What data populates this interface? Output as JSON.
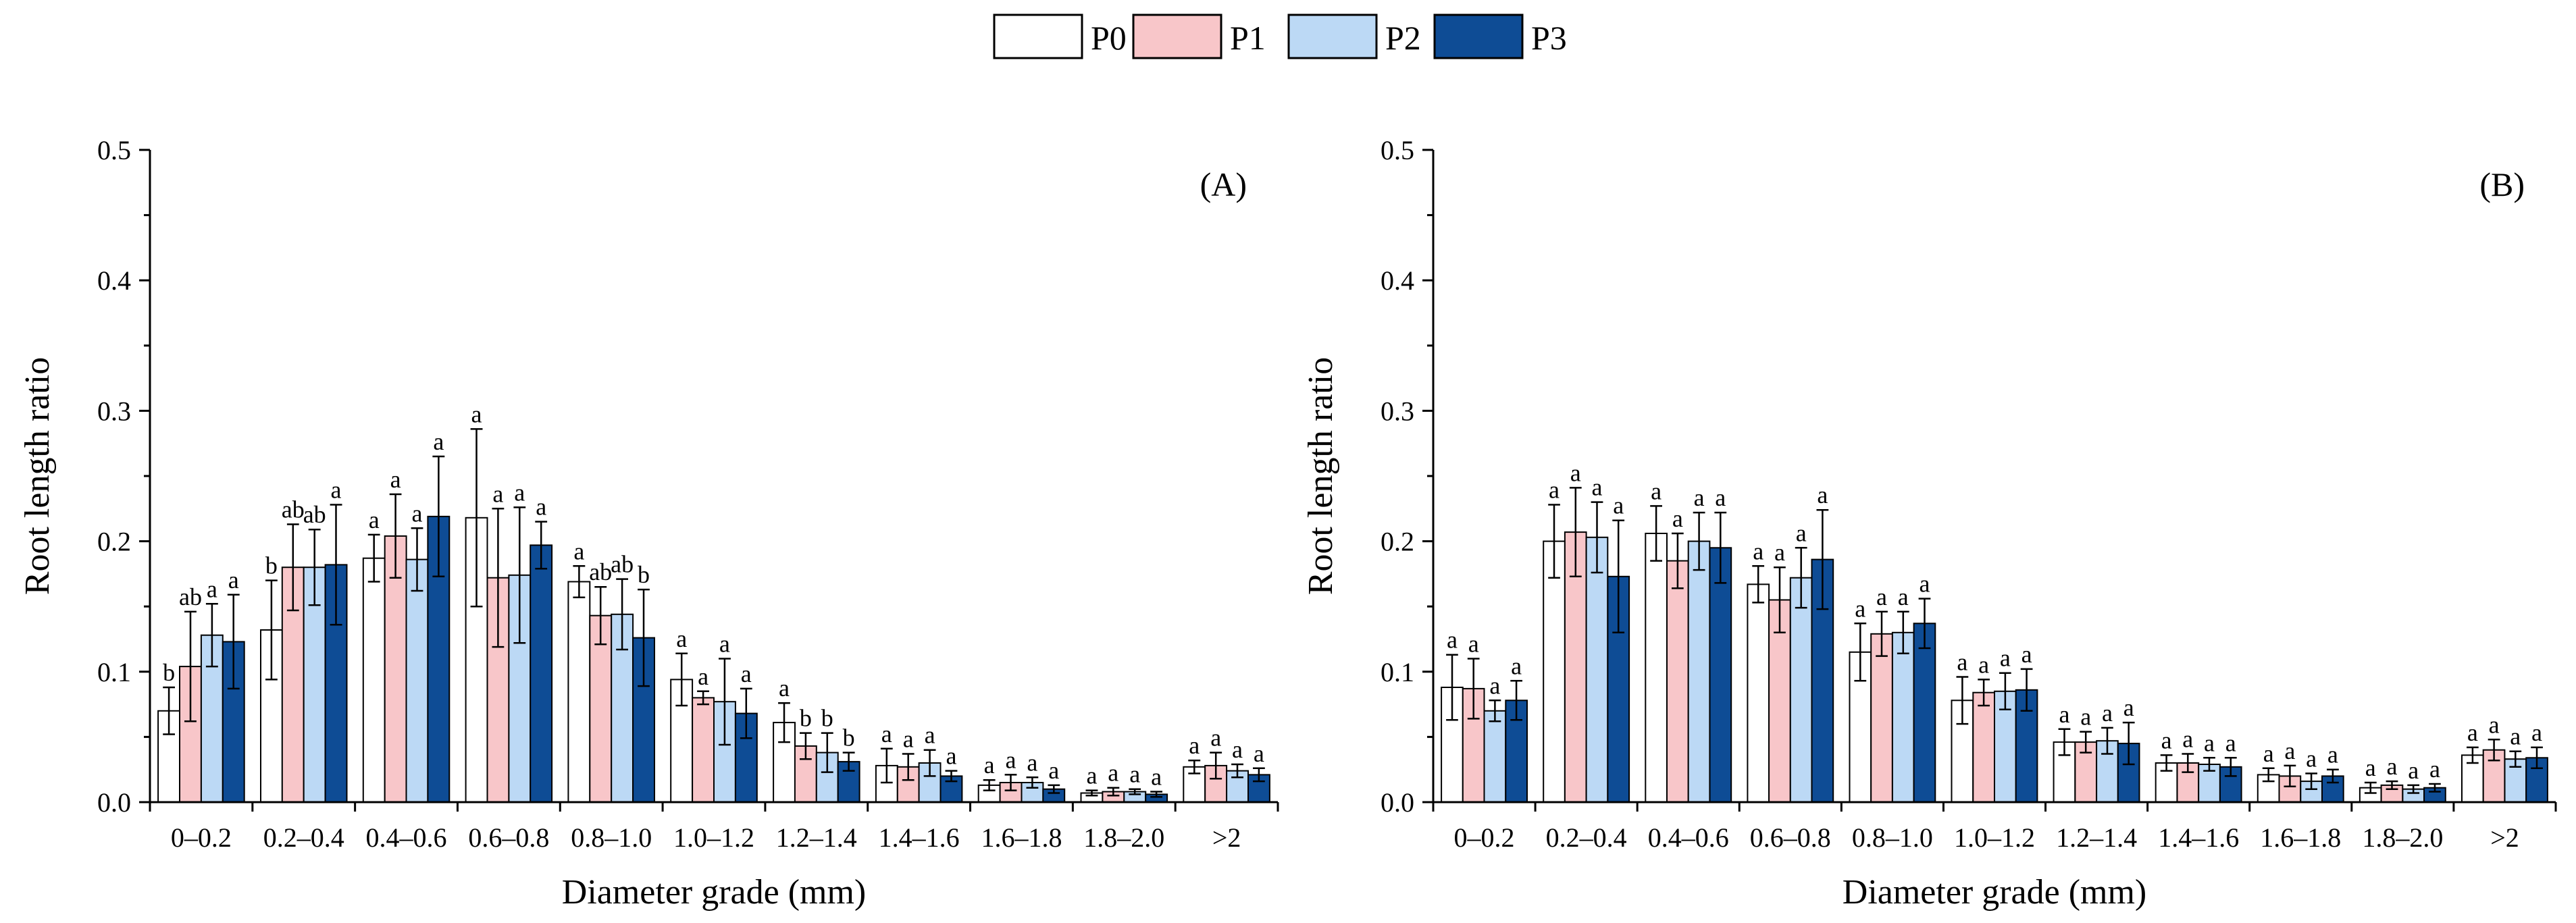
{
  "legend": [
    {
      "name": "P0",
      "color": "#ffffff"
    },
    {
      "name": "P1",
      "color": "#f8c6c9"
    },
    {
      "name": "P2",
      "color": "#bcd9f5"
    },
    {
      "name": "P3",
      "color": "#0e4c95"
    }
  ],
  "chart_data": [
    {
      "type": "bar",
      "panel_label": "(A)",
      "xlabel": "Diameter grade (mm)",
      "ylabel": "Root length ratio",
      "ylim": [
        0,
        0.5
      ],
      "yticks": [
        "0.0",
        "0.1",
        "0.2",
        "0.3",
        "0.4",
        "0.5"
      ],
      "categories": [
        "0–0.2",
        "0.2–0.4",
        "0.4–0.6",
        "0.6–0.8",
        "0.8–1.0",
        "1.0–1.2",
        "1.2–1.4",
        "1.4–1.6",
        "1.6–1.8",
        "1.8–2.0",
        ">2"
      ],
      "series": [
        {
          "name": "P0",
          "values": [
            0.07,
            0.132,
            0.187,
            0.218,
            0.169,
            0.094,
            0.061,
            0.028,
            0.013,
            0.007,
            0.027
          ],
          "errors": [
            0.018,
            0.038,
            0.018,
            0.068,
            0.012,
            0.02,
            0.015,
            0.013,
            0.004,
            0.002,
            0.005
          ]
        },
        {
          "name": "P1",
          "values": [
            0.104,
            0.18,
            0.204,
            0.172,
            0.143,
            0.08,
            0.043,
            0.027,
            0.015,
            0.008,
            0.028
          ],
          "errors": [
            0.042,
            0.033,
            0.032,
            0.053,
            0.022,
            0.005,
            0.01,
            0.01,
            0.006,
            0.003,
            0.01
          ]
        },
        {
          "name": "P2",
          "values": [
            0.128,
            0.18,
            0.186,
            0.174,
            0.144,
            0.077,
            0.038,
            0.03,
            0.015,
            0.008,
            0.024
          ],
          "errors": [
            0.024,
            0.029,
            0.024,
            0.052,
            0.027,
            0.033,
            0.015,
            0.01,
            0.004,
            0.002,
            0.005
          ]
        },
        {
          "name": "P3",
          "values": [
            0.123,
            0.182,
            0.219,
            0.197,
            0.126,
            0.068,
            0.031,
            0.02,
            0.01,
            0.006,
            0.021
          ],
          "errors": [
            0.036,
            0.046,
            0.046,
            0.018,
            0.037,
            0.019,
            0.007,
            0.004,
            0.003,
            0.002,
            0.005
          ]
        }
      ],
      "letters": [
        [
          "b",
          "ab",
          "a",
          "a"
        ],
        [
          "b",
          "ab",
          "ab",
          "a"
        ],
        [
          "a",
          "a",
          "a",
          "a"
        ],
        [
          "a",
          "a",
          "a",
          "a"
        ],
        [
          "a",
          "ab",
          "ab",
          "b"
        ],
        [
          "a",
          "a",
          "a",
          "a"
        ],
        [
          "a",
          "b",
          "b",
          "b"
        ],
        [
          "a",
          "a",
          "a",
          "a"
        ],
        [
          "a",
          "a",
          "a",
          "a"
        ],
        [
          "a",
          "a",
          "a",
          "a"
        ],
        [
          "a",
          "a",
          "a",
          "a"
        ]
      ]
    },
    {
      "type": "bar",
      "panel_label": "(B)",
      "xlabel": "Diameter grade (mm)",
      "ylabel": "Root length ratio",
      "ylim": [
        0,
        0.5
      ],
      "yticks": [
        "0.0",
        "0.1",
        "0.2",
        "0.3",
        "0.4",
        "0.5"
      ],
      "categories": [
        "0–0.2",
        "0.2–0.4",
        "0.4–0.6",
        "0.6–0.8",
        "0.8–1.0",
        "1.0–1.2",
        "1.2–1.4",
        "1.4–1.6",
        "1.6–1.8",
        "1.8–2.0",
        ">2"
      ],
      "series": [
        {
          "name": "P0",
          "values": [
            0.088,
            0.2,
            0.206,
            0.167,
            0.115,
            0.078,
            0.046,
            0.03,
            0.021,
            0.011,
            0.036
          ],
          "errors": [
            0.025,
            0.028,
            0.021,
            0.014,
            0.022,
            0.018,
            0.01,
            0.006,
            0.005,
            0.004,
            0.006
          ]
        },
        {
          "name": "P1",
          "values": [
            0.087,
            0.207,
            0.185,
            0.155,
            0.129,
            0.084,
            0.046,
            0.03,
            0.02,
            0.013,
            0.04
          ],
          "errors": [
            0.023,
            0.034,
            0.021,
            0.025,
            0.017,
            0.01,
            0.008,
            0.007,
            0.008,
            0.003,
            0.008
          ]
        },
        {
          "name": "P2",
          "values": [
            0.07,
            0.203,
            0.2,
            0.172,
            0.13,
            0.085,
            0.047,
            0.029,
            0.016,
            0.01,
            0.033
          ],
          "errors": [
            0.008,
            0.027,
            0.022,
            0.023,
            0.016,
            0.014,
            0.01,
            0.005,
            0.006,
            0.003,
            0.006
          ]
        },
        {
          "name": "P3",
          "values": [
            0.078,
            0.173,
            0.195,
            0.186,
            0.137,
            0.086,
            0.045,
            0.027,
            0.02,
            0.011,
            0.034
          ],
          "errors": [
            0.015,
            0.043,
            0.027,
            0.038,
            0.019,
            0.016,
            0.016,
            0.007,
            0.005,
            0.003,
            0.008
          ]
        }
      ],
      "letters": [
        [
          "a",
          "a",
          "a",
          "a"
        ],
        [
          "a",
          "a",
          "a",
          "a"
        ],
        [
          "a",
          "a",
          "a",
          "a"
        ],
        [
          "a",
          "a",
          "a",
          "a"
        ],
        [
          "a",
          "a",
          "a",
          "a"
        ],
        [
          "a",
          "a",
          "a",
          "a"
        ],
        [
          "a",
          "a",
          "a",
          "a"
        ],
        [
          "a",
          "a",
          "a",
          "a"
        ],
        [
          "a",
          "a",
          "a",
          "a"
        ],
        [
          "a",
          "a",
          "a",
          "a"
        ],
        [
          "a",
          "a",
          "a",
          "a"
        ]
      ]
    }
  ]
}
